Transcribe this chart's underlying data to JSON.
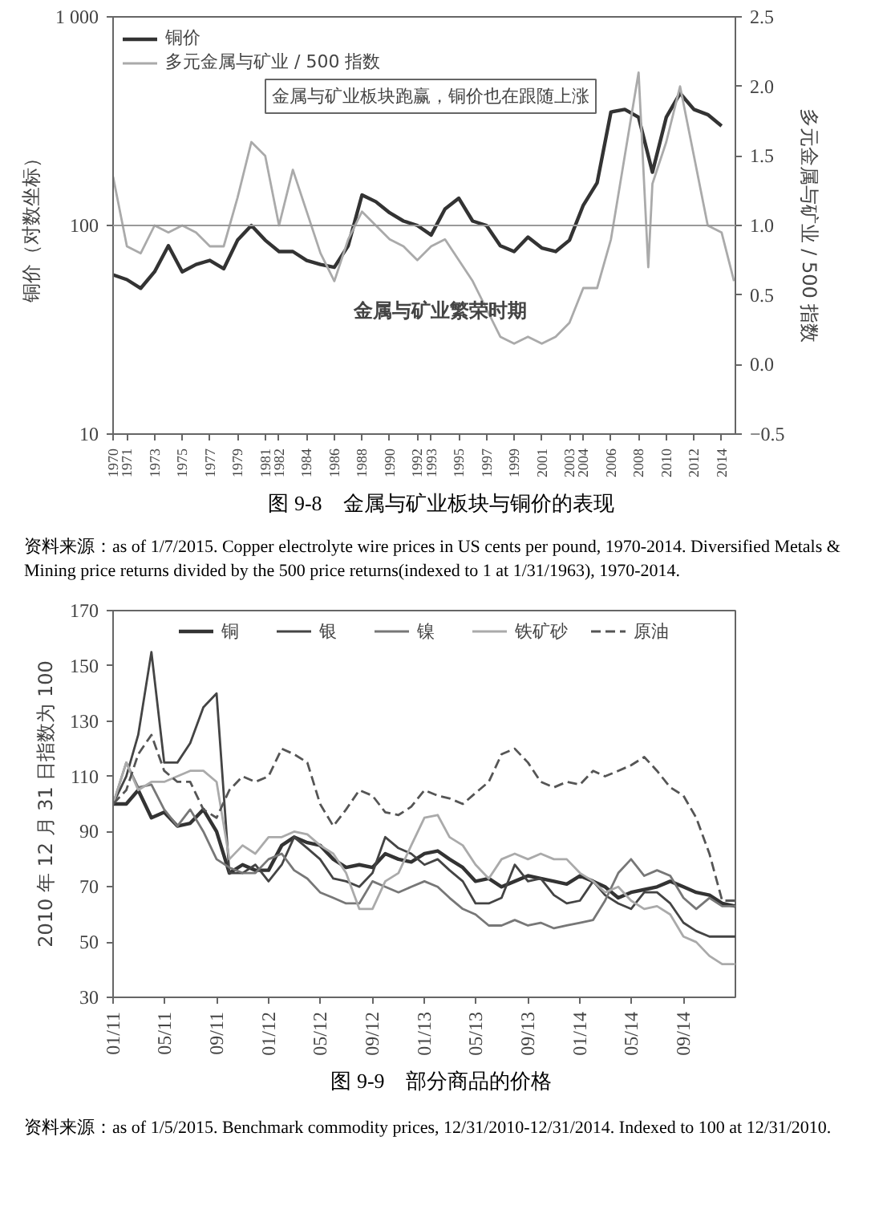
{
  "chart_data": [
    {
      "type": "line",
      "title": "图 9-8　金属与矿业板块与铜价的表现",
      "ylabel": "铜价（对数坐标）",
      "y2label": "多元金属与矿业 / 500 指数",
      "log": "y",
      "legend": "top left",
      "grid": false,
      "xlim": [
        1970,
        2015
      ],
      "xticks": [
        1970,
        1971,
        1973,
        1975,
        1977,
        1979,
        1981,
        1982,
        1984,
        1986,
        1988,
        1990,
        1992,
        1993,
        1995,
        1997,
        1999,
        2001,
        2003,
        2004,
        2006,
        2008,
        2010,
        2012,
        2014
      ],
      "ylim": [
        10,
        1000
      ],
      "yticks": [
        10,
        100,
        {
          "value": 1000,
          "label": "1 000"
        }
      ],
      "y2lim": [
        -0.5,
        2.5
      ],
      "y2ticks": [
        {
          "value": -0.5,
          "label": "−0.5"
        },
        {
          "value": 0,
          "label": "0.0"
        },
        {
          "value": 0.5,
          "label": "0.5"
        },
        {
          "value": 1,
          "label": "1.0"
        },
        {
          "value": 1.5,
          "label": "1.5"
        },
        {
          "value": 2,
          "label": "2.0"
        },
        {
          "value": 2.5,
          "label": "2.5"
        }
      ],
      "ref_lines": [
        {
          "axis": "y",
          "value": 100,
          "color": "#999999"
        }
      ],
      "series": [
        {
          "name": "铜价",
          "color": "#333333",
          "x": [
            1970,
            1971,
            1972,
            1973,
            1974,
            1975,
            1976,
            1977,
            1978,
            1979,
            1980,
            1981,
            1982,
            1983,
            1984,
            1985,
            1986,
            1987,
            1988,
            1989,
            1990,
            1991,
            1992,
            1993,
            1994,
            1995,
            1996,
            1997,
            1998,
            1999,
            2000,
            2001,
            2002,
            2003,
            2004,
            2005,
            2006,
            2007,
            2008,
            2009,
            2010,
            2011,
            2012,
            2013,
            2014
          ],
          "values": [
            58,
            55,
            50,
            60,
            80,
            60,
            65,
            68,
            62,
            85,
            100,
            85,
            75,
            75,
            68,
            65,
            63,
            80,
            140,
            130,
            115,
            105,
            100,
            90,
            120,
            135,
            105,
            100,
            80,
            75,
            88,
            78,
            75,
            85,
            125,
            160,
            350,
            360,
            330,
            180,
            330,
            430,
            360,
            340,
            300
          ]
        },
        {
          "name": "多元金属与矿业 / 500 指数",
          "color": "#aaaaaa",
          "axis": "y2",
          "x": [
            1970,
            1971,
            1972,
            1973,
            1974,
            1975,
            1976,
            1977,
            1978,
            1979,
            1980,
            1981,
            1982,
            1983,
            1984,
            1985,
            1986,
            1987,
            1988,
            1989,
            1990,
            1991,
            1992,
            1993,
            1994,
            1995,
            1996,
            1997,
            1998,
            1999,
            2000,
            2001,
            2002,
            2003,
            2004,
            2005,
            2006,
            2007,
            2008,
            2008.7,
            2009,
            2010,
            2011,
            2012,
            2013,
            2014,
            2014.9
          ],
          "values": [
            1.35,
            0.85,
            0.8,
            1.0,
            0.95,
            1.0,
            0.95,
            0.85,
            0.85,
            1.2,
            1.6,
            1.5,
            1.0,
            1.4,
            1.1,
            0.8,
            0.6,
            0.9,
            1.1,
            1.0,
            0.9,
            0.85,
            0.75,
            0.85,
            0.9,
            0.75,
            0.6,
            0.4,
            0.2,
            0.15,
            0.2,
            0.15,
            0.2,
            0.3,
            0.55,
            0.55,
            0.9,
            1.5,
            2.1,
            0.7,
            1.3,
            1.6,
            2.0,
            1.5,
            1.0,
            0.95,
            0.6
          ]
        }
      ],
      "annotations": [
        "金属与矿业板块跑赢，铜价也在跟随上涨",
        "金属与矿业繁荣时期",
        "资料来源：as of 1/7/2015. Copper electrolyte wire prices in US cents per pound, 1970-2014. Diversified Metals & Mining price returns divided by the 500 price returns(indexed to 1 at 1/31/1963), 1970-2014."
      ]
    },
    {
      "type": "line",
      "title": "图 9-9　部分商品的价格",
      "ylabel": "2010 年 12 月 31 日指数为 100",
      "legend": "top",
      "grid": false,
      "x": [
        "2011-01",
        "2011-02",
        "2011-03",
        "2011-04",
        "2011-05",
        "2011-06",
        "2011-07",
        "2011-08",
        "2011-09",
        "2011-10",
        "2011-11",
        "2011-12",
        "2012-01",
        "2012-02",
        "2012-03",
        "2012-04",
        "2012-05",
        "2012-06",
        "2012-07",
        "2012-08",
        "2012-09",
        "2012-10",
        "2012-11",
        "2012-12",
        "2013-01",
        "2013-02",
        "2013-03",
        "2013-04",
        "2013-05",
        "2013-06",
        "2013-07",
        "2013-08",
        "2013-09",
        "2013-10",
        "2013-11",
        "2013-12",
        "2014-01",
        "2014-02",
        "2014-03",
        "2014-04",
        "2014-05",
        "2014-06",
        "2014-07",
        "2014-08",
        "2014-09",
        "2014-10",
        "2014-11",
        "2014-12",
        "2015-01"
      ],
      "xlim": [
        "2011-01-01",
        "2015-01-01"
      ],
      "xticks": [
        {
          "value": "2011-01-01",
          "label": "01/11"
        },
        {
          "value": "2011-05-01",
          "label": "05/11"
        },
        {
          "value": "2011-09-01",
          "label": "09/11"
        },
        {
          "value": "2012-01-01",
          "label": "01/12"
        },
        {
          "value": "2012-05-01",
          "label": "05/12"
        },
        {
          "value": "2012-09-01",
          "label": "09/12"
        },
        {
          "value": "2013-01-01",
          "label": "01/13"
        },
        {
          "value": "2013-05-01",
          "label": "05/13"
        },
        {
          "value": "2013-09-01",
          "label": "09/13"
        },
        {
          "value": "2014-01-01",
          "label": "01/14"
        },
        {
          "value": "2014-05-01",
          "label": "05/14"
        },
        {
          "value": "2014-09-01",
          "label": "09/14"
        }
      ],
      "ylim": [
        30,
        170
      ],
      "yticks": [
        30,
        50,
        70,
        90,
        110,
        130,
        150,
        170
      ],
      "series": [
        {
          "name": "铜",
          "color": "#333333",
          "values": [
            100,
            100,
            105,
            95,
            97,
            92,
            93,
            98,
            90,
            75,
            78,
            76,
            76,
            85,
            88,
            86,
            85,
            80,
            77,
            78,
            77,
            82,
            80,
            79,
            82,
            83,
            80,
            77,
            72,
            73,
            70,
            72,
            74,
            73,
            72,
            71,
            74,
            72,
            70,
            66,
            68,
            69,
            70,
            72,
            70,
            68,
            67,
            64,
            63
          ]
        },
        {
          "name": "银",
          "color": "#444444",
          "values": [
            100,
            110,
            125,
            155,
            115,
            115,
            122,
            135,
            140,
            75,
            75,
            78,
            72,
            78,
            88,
            84,
            80,
            73,
            72,
            70,
            75,
            88,
            84,
            82,
            78,
            80,
            76,
            72,
            64,
            64,
            66,
            78,
            72,
            73,
            67,
            64,
            65,
            72,
            67,
            64,
            62,
            68,
            68,
            64,
            57,
            54,
            52,
            52,
            52
          ]
        },
        {
          "name": "镍",
          "color": "#777777",
          "values": [
            100,
            115,
            106,
            107,
            98,
            92,
            98,
            90,
            80,
            77,
            75,
            75,
            80,
            82,
            76,
            73,
            68,
            66,
            64,
            64,
            72,
            70,
            68,
            70,
            72,
            70,
            66,
            62,
            60,
            56,
            56,
            58,
            56,
            57,
            55,
            56,
            57,
            58,
            65,
            75,
            80,
            74,
            76,
            74,
            66,
            62,
            66,
            63,
            63
          ]
        },
        {
          "name": "铁矿砂",
          "color": "#aaaaaa",
          "values": [
            100,
            115,
            105,
            108,
            108,
            110,
            112,
            112,
            108,
            80,
            85,
            82,
            88,
            88,
            90,
            89,
            85,
            82,
            75,
            62,
            62,
            72,
            75,
            85,
            95,
            96,
            88,
            85,
            78,
            73,
            80,
            82,
            80,
            82,
            80,
            80,
            75,
            72,
            68,
            70,
            65,
            62,
            63,
            60,
            52,
            50,
            45,
            42,
            42
          ]
        },
        {
          "name": "原油",
          "color": "#555555",
          "line_style": "dashed",
          "values": [
            100,
            105,
            118,
            125,
            112,
            108,
            108,
            98,
            95,
            105,
            110,
            108,
            110,
            120,
            118,
            115,
            100,
            92,
            98,
            105,
            103,
            97,
            96,
            99,
            105,
            103,
            102,
            100,
            104,
            108,
            118,
            120,
            115,
            108,
            106,
            108,
            107,
            112,
            110,
            112,
            114,
            117,
            112,
            106,
            103,
            95,
            82,
            65,
            65
          ]
        }
      ],
      "annotations": [
        "资料来源：as of 1/5/2015. Benchmark commodity prices, 12/31/2010-12/31/2014. Indexed to 100 at 12/31/2010."
      ]
    }
  ]
}
